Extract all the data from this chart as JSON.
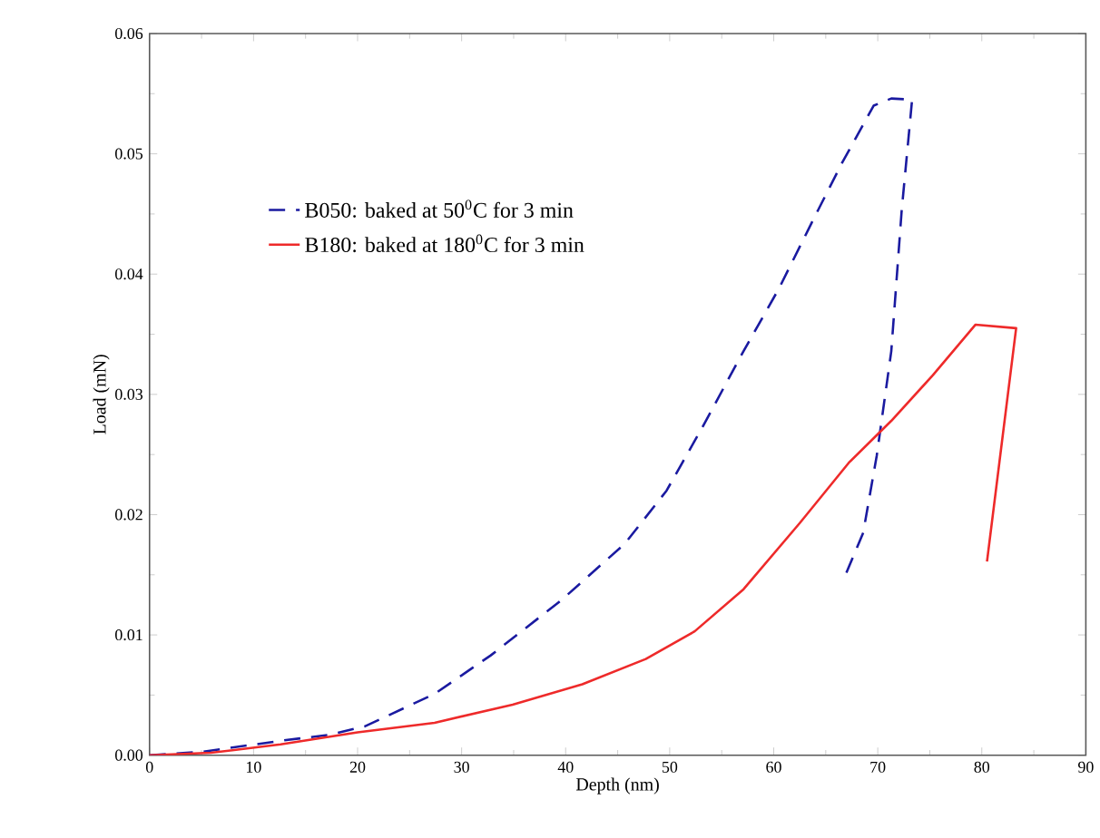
{
  "chart_data": {
    "type": "line",
    "xlabel": "Depth (nm)",
    "ylabel": "Load (mN)",
    "xlim": [
      0,
      90
    ],
    "ylim": [
      0,
      0.06
    ],
    "xticks": [
      0,
      10,
      20,
      30,
      40,
      50,
      60,
      70,
      80,
      90
    ],
    "yticks": [
      {
        "value": 0,
        "label": "0.00"
      },
      {
        "value": 0.01,
        "label": "0.01"
      },
      {
        "value": 0.02,
        "label": "0.02"
      },
      {
        "value": 0.03,
        "label": "0.03"
      },
      {
        "value": 0.04,
        "label": "0.04"
      },
      {
        "value": 0.05,
        "label": "0.05"
      },
      {
        "value": 0.06,
        "label": "0.06"
      }
    ],
    "grid": false,
    "legend": "top left",
    "marker": "none",
    "series": [
      {
        "name": "B050: baked at 50$^{0}$C for 3 min",
        "color": "#1a1aa0",
        "line_style": "dashed",
        "x": [
          0,
          5.2,
          12.6,
          17.3,
          20.7,
          27.4,
          32.8,
          39.6,
          45.7,
          49.7,
          53.1,
          57.1,
          60.5,
          63.9,
          66.6,
          69.6,
          71.3,
          73.3,
          72.3,
          71.3,
          69.9,
          68.6,
          66.9
        ],
        "values": [
          0,
          0.0003,
          0.0012,
          0.0017,
          0.0024,
          0.0051,
          0.0083,
          0.0129,
          0.0176,
          0.022,
          0.0272,
          0.0336,
          0.0388,
          0.0447,
          0.0493,
          0.054,
          0.0546,
          0.0545,
          0.0453,
          0.0336,
          0.0249,
          0.0185,
          0.015
        ]
      },
      {
        "name": "B180: baked at 180$^{0}$C for 3 min",
        "color": "#ee2a2a",
        "line_style": "solid",
        "x": [
          0,
          5.9,
          12.6,
          20.0,
          27.4,
          34.9,
          41.6,
          47.7,
          52.4,
          57.1,
          62.5,
          67.2,
          71.3,
          75.3,
          79.4,
          83.3,
          80.5
        ],
        "values": [
          0,
          0.0002,
          0.0009,
          0.0019,
          0.0027,
          0.0042,
          0.0059,
          0.008,
          0.0103,
          0.0138,
          0.0193,
          0.0243,
          0.0278,
          0.0316,
          0.0358,
          0.0355,
          0.0161
        ]
      }
    ]
  }
}
